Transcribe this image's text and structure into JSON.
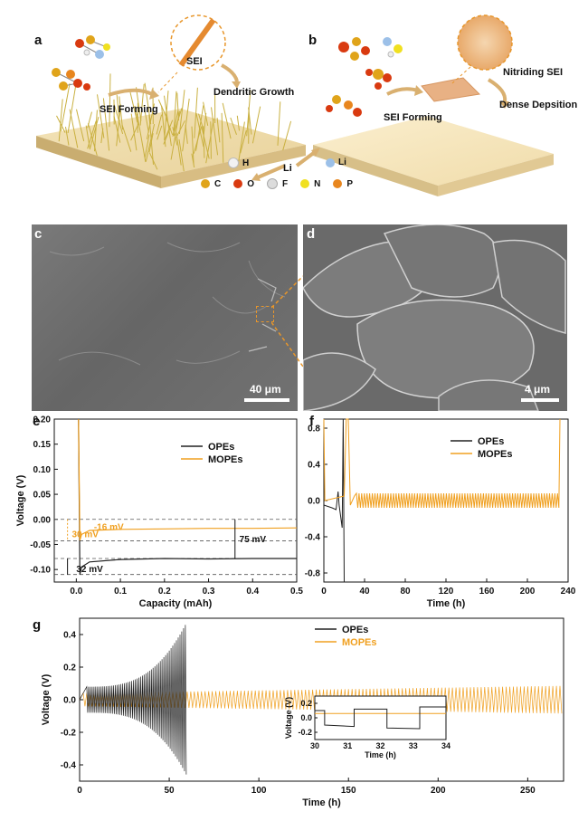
{
  "figure": {
    "panel_labels": [
      "a",
      "b",
      "c",
      "d",
      "e",
      "f",
      "g"
    ]
  },
  "schematic": {
    "left_labels": {
      "sei": "SEI",
      "forming": "SEI Forming",
      "growth": "Dendritic Growth"
    },
    "right_labels": {
      "nitriding": "Nitriding SEI",
      "forming": "SEI Forming",
      "dense": "Dense Depsition"
    },
    "li_label": "Li",
    "legend": [
      {
        "symbol": "H",
        "color": "#f2f2f2"
      },
      {
        "symbol": "Li",
        "color": "#9cc0e8"
      },
      {
        "symbol": "C",
        "color": "#e0a41a"
      },
      {
        "symbol": "O",
        "color": "#d93a10"
      },
      {
        "symbol": "F",
        "color": "#dcdcdc"
      },
      {
        "symbol": "N",
        "color": "#f0e020"
      },
      {
        "symbol": "P",
        "color": "#e8861e"
      }
    ]
  },
  "sem": {
    "c_scale": "40 μm",
    "d_scale": "4 μm"
  },
  "colors": {
    "opes": "#222222",
    "mopes": "#f0a020",
    "dashed": "#555555"
  },
  "chart_data": [
    {
      "panel": "e",
      "type": "line",
      "xlabel": "Capacity (mAh)",
      "ylabel": "Voltage (V)",
      "xlim": [
        -0.05,
        0.5
      ],
      "ylim": [
        -0.125,
        0.2
      ],
      "xticks": [
        "0.0",
        "0.1",
        "0.2",
        "0.3",
        "0.4",
        "0.5"
      ],
      "yticks": [
        "0.20",
        "0.15",
        "0.10",
        "0.05",
        "0.00",
        "-0.05",
        "-0.10"
      ],
      "series": [
        {
          "name": "OPEs",
          "x": [
            0.005,
            0.008,
            0.012,
            0.03,
            0.1,
            0.2,
            0.3,
            0.4,
            0.5
          ],
          "y": [
            0.2,
            -0.11,
            -0.095,
            -0.085,
            -0.08,
            -0.078,
            -0.079,
            -0.078,
            -0.078
          ]
        },
        {
          "name": "MOPEs",
          "x": [
            0.005,
            0.008,
            0.012,
            0.03,
            0.1,
            0.2,
            0.3,
            0.4,
            0.5
          ],
          "y": [
            0.2,
            -0.042,
            -0.03,
            -0.022,
            -0.02,
            -0.019,
            -0.018,
            -0.018,
            -0.017
          ]
        }
      ],
      "annotations": [
        "-16 mV",
        "30 mV",
        "75 mV",
        "32 mV"
      ]
    },
    {
      "panel": "f",
      "type": "line",
      "xlabel": "Time (h)",
      "ylabel": "Voltage (V)",
      "xlim": [
        0,
        240
      ],
      "ylim": [
        -0.9,
        0.9
      ],
      "xticks": [
        "0",
        "40",
        "80",
        "120",
        "160",
        "200",
        "240"
      ],
      "yticks": [
        "0.8",
        "0.4",
        "0.0",
        "-0.4",
        "-0.8"
      ],
      "series": [
        {
          "name": "OPEs"
        },
        {
          "name": "MOPEs"
        }
      ]
    },
    {
      "panel": "g",
      "type": "line",
      "xlabel": "Time (h)",
      "ylabel": "Voltage (V)",
      "xlim": [
        0,
        270
      ],
      "ylim": [
        -0.5,
        0.5
      ],
      "xticks": [
        "0",
        "50",
        "100",
        "150",
        "200",
        "250"
      ],
      "yticks": [
        "0.4",
        "0.2",
        "0.0",
        "-0.2",
        "-0.4"
      ],
      "series": [
        {
          "name": "OPEs"
        },
        {
          "name": "MOPEs"
        }
      ],
      "inset": {
        "xlabel": "Time (h)",
        "ylabel": "Voltage (V)",
        "xticks": [
          "30",
          "31",
          "32",
          "33",
          "34"
        ],
        "yticks": [
          "0.2",
          "0.0",
          "-0.2"
        ]
      }
    }
  ]
}
